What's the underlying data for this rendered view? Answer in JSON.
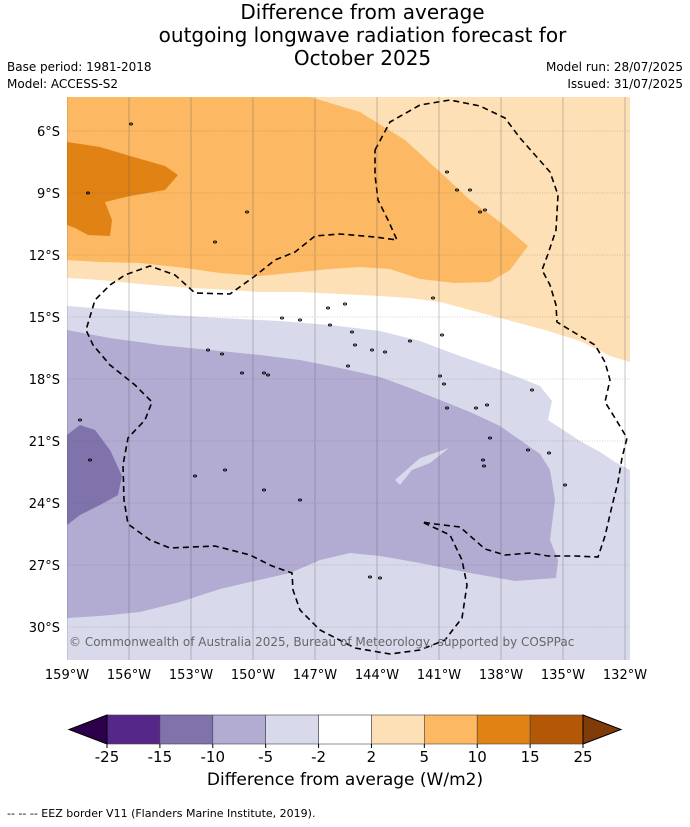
{
  "title": {
    "line1": "Difference from average",
    "line2": "outgoing longwave radiation forecast for",
    "line3": "October 2025"
  },
  "meta": {
    "base_period": "Base period: 1981-2018",
    "model": "Model: ACCESS-S2",
    "model_run": "Model run: 28/07/2025",
    "issued": "Issued: 31/07/2025"
  },
  "map": {
    "lat_labels": [
      "6°S",
      "9°S",
      "12°S",
      "15°S",
      "18°S",
      "21°S",
      "24°S",
      "27°S",
      "30°S"
    ],
    "lon_labels": [
      "159°W",
      "156°W",
      "153°W",
      "150°W",
      "147°W",
      "144°W",
      "141°W",
      "138°W",
      "135°W",
      "132°W"
    ],
    "copyright": "© Commonwealth of Australia 2025, Bureau of Meteorology, supported by COSPPac",
    "colors": {
      "p2_5": "#fde0b6",
      "p5_10": "#fdb863",
      "p10_15": "#e08214",
      "n5_2": "#d8daeb",
      "n10_5": "#b2abd2",
      "n15_10": "#8073ac"
    }
  },
  "colorbar": {
    "ticks": [
      "-25",
      "-15",
      "-10",
      "-5",
      "-2",
      "2",
      "5",
      "10",
      "15",
      "25"
    ],
    "colors": [
      "#542788",
      "#8073ac",
      "#b2abd2",
      "#d8daeb",
      "#ffffff",
      "#fde0b6",
      "#fdb863",
      "#e08214",
      "#b35806"
    ],
    "under_color": "#2d004b",
    "over_color": "#7f3b08",
    "label": "Difference from average (W/m2)"
  },
  "footer": "--  --  -- EEZ border V11 (Flanders Marine Institute, 2019)."
}
